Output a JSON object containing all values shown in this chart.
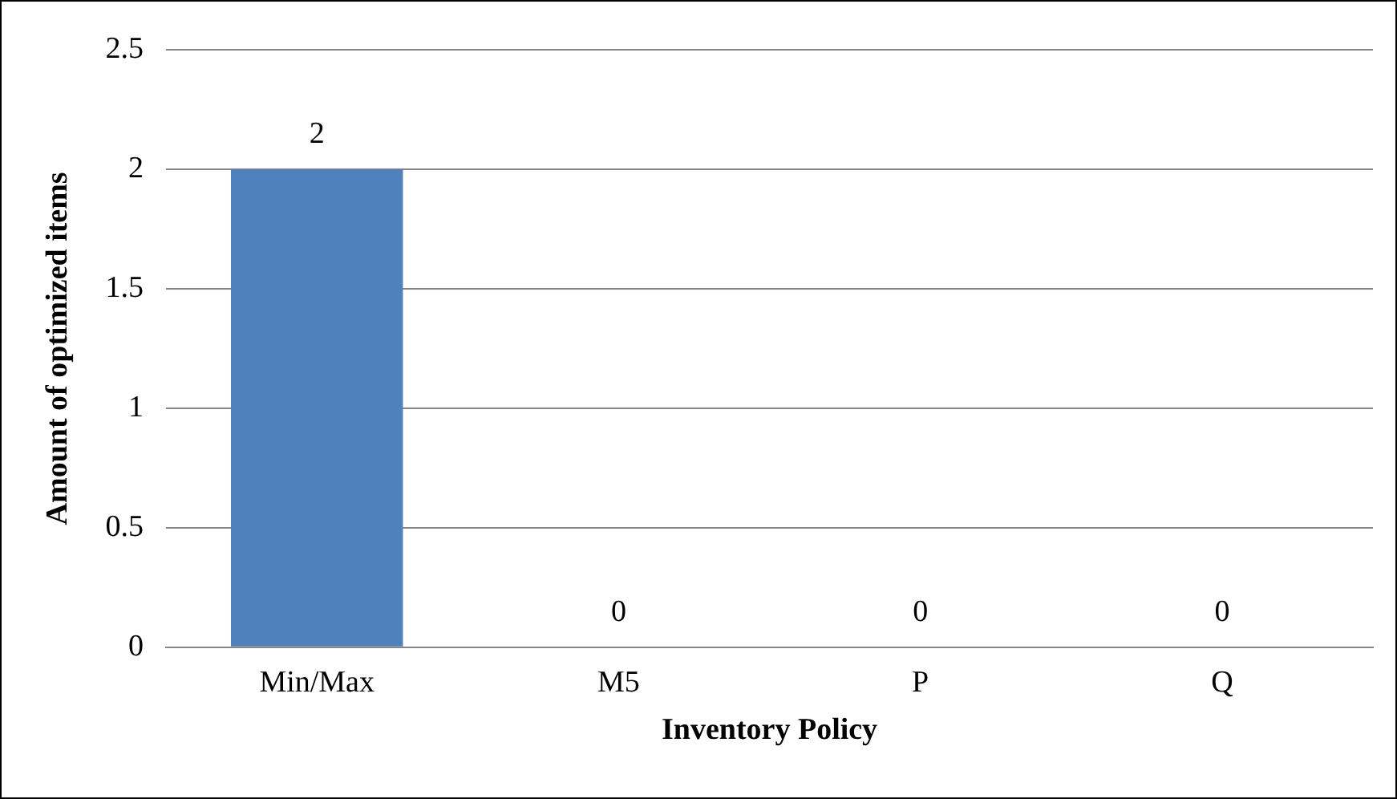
{
  "chart_data": {
    "type": "bar",
    "xlabel": "Inventory Policy",
    "ylabel": "Amount of optimized items",
    "categories": [
      "Min/Max",
      "M5",
      "P",
      "Q"
    ],
    "values": [
      2,
      0,
      0,
      0
    ],
    "color": "#4f81bd",
    "ylim": [
      0,
      2.5
    ],
    "yticks": [
      0,
      0.5,
      1,
      1.5,
      2,
      2.5
    ],
    "grid": "y",
    "data_labels": true
  }
}
